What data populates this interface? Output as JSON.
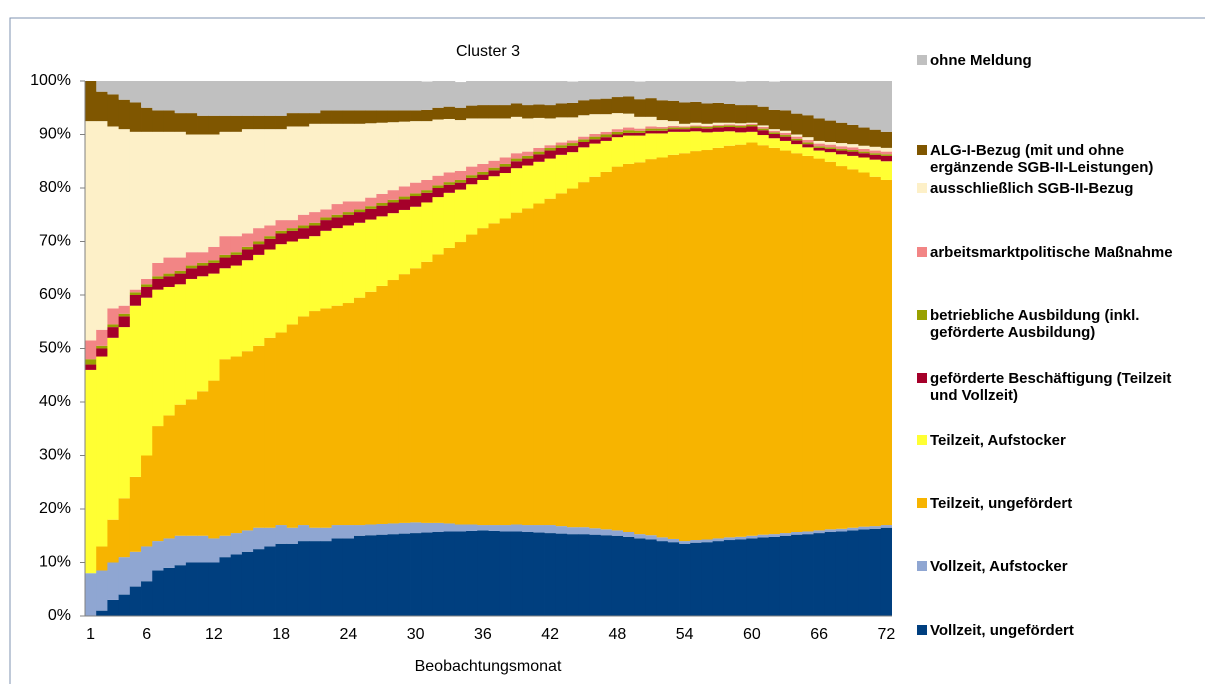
{
  "chart_data": {
    "type": "stacked_bar",
    "title": "Cluster 3",
    "x_label": "Beobachtungsmonat",
    "categories": [
      1,
      null,
      null,
      null,
      null,
      6,
      null,
      null,
      null,
      null,
      null,
      12,
      null,
      null,
      null,
      null,
      null,
      18,
      null,
      null,
      null,
      null,
      null,
      24,
      null,
      null,
      null,
      null,
      null,
      30,
      null,
      null,
      null,
      null,
      null,
      36,
      null,
      null,
      null,
      null,
      null,
      42,
      null,
      null,
      null,
      null,
      null,
      48,
      null,
      null,
      null,
      null,
      null,
      54,
      null,
      null,
      null,
      null,
      null,
      60,
      null,
      null,
      null,
      null,
      null,
      66,
      null,
      null,
      null,
      null,
      null,
      72
    ],
    "ylim": [
      0,
      100
    ],
    "yticks": [
      {
        "value": 0,
        "label": "0%"
      },
      {
        "value": 10,
        "label": "10%"
      },
      {
        "value": 20,
        "label": "20%"
      },
      {
        "value": 30,
        "label": "30%"
      },
      {
        "value": 40,
        "label": "40%"
      },
      {
        "value": 50,
        "label": "50%"
      },
      {
        "value": 60,
        "label": "60%"
      },
      {
        "value": 70,
        "label": "70%"
      },
      {
        "value": 80,
        "label": "80%"
      },
      {
        "value": 90,
        "label": "90%"
      },
      {
        "value": 100,
        "label": "100%"
      }
    ],
    "series": [
      {
        "name": "Vollzeit, ungefördert",
        "color": "#003f7f",
        "values": [
          0,
          1,
          3,
          4,
          5.5,
          6.5,
          8.5,
          9,
          9.5,
          10,
          10,
          10,
          11,
          11.5,
          12,
          12.5,
          13,
          13.5,
          13.5,
          14,
          14,
          14,
          14.5,
          14.5,
          15,
          15.1,
          15.2,
          15.3,
          15.4,
          15.5,
          15.6,
          15.7,
          15.8,
          15.8,
          15.9,
          16,
          15.9,
          15.8,
          15.8,
          15.7,
          15.6,
          15.5,
          15.4,
          15.3,
          15.3,
          15.2,
          15.1,
          15,
          14.8,
          14.5,
          14.3,
          14,
          13.8,
          13.5,
          13.7,
          13.8,
          14,
          14.2,
          14.3,
          14.5,
          14.7,
          14.8,
          15,
          15.2,
          15.3,
          15.5,
          15.7,
          15.8,
          16,
          16.2,
          16.3,
          16.5
        ]
      },
      {
        "name": "Vollzeit, Aufstocker",
        "color": "#8fa6d2",
        "values": [
          8,
          7.5,
          7,
          7,
          6.5,
          6.5,
          5.5,
          5.5,
          5.5,
          5,
          5,
          4.5,
          4,
          4,
          4,
          4,
          3.5,
          3.5,
          3,
          3,
          2.5,
          2.5,
          2.5,
          2.5,
          2,
          2,
          2,
          2,
          2,
          2,
          1.8,
          1.7,
          1.5,
          1.3,
          1.2,
          1,
          1.1,
          1.2,
          1.3,
          1.3,
          1.4,
          1.5,
          1.4,
          1.3,
          1.3,
          1.2,
          1.1,
          1,
          0.9,
          0.8,
          0.8,
          0.7,
          0.6,
          0.5,
          0.5,
          0.5,
          0.5,
          0.5,
          0.5,
          0.5,
          0.5,
          0.5,
          0.5,
          0.5,
          0.5,
          0.5,
          0.5,
          0.5,
          0.5,
          0.5,
          0.5,
          0.5
        ]
      },
      {
        "name": "Teilzeit, ungefördert",
        "color": "#f7b400",
        "values": [
          0,
          4.5,
          8,
          11,
          14,
          17,
          21.5,
          23,
          24.5,
          25.5,
          27,
          29.5,
          33,
          33,
          33.5,
          34,
          35.5,
          36,
          38,
          39,
          40.5,
          41,
          41,
          41.5,
          42.5,
          43.5,
          44.5,
          45.5,
          46.5,
          47.5,
          48.8,
          50.2,
          51.5,
          52.8,
          54.2,
          55.5,
          56.4,
          57.3,
          58.3,
          59.2,
          60.1,
          61,
          62.2,
          63.3,
          64.5,
          65.7,
          66.8,
          68,
          68.8,
          69.5,
          70.3,
          71,
          71.8,
          72.5,
          72.7,
          72.8,
          73,
          73.2,
          73.3,
          73.5,
          72.8,
          72.2,
          71.5,
          70.8,
          70.2,
          69.5,
          68.7,
          67.8,
          67,
          66.2,
          65.3,
          64.5
        ]
      },
      {
        "name": "Teilzeit, Aufstocker",
        "color": "#ffff33",
        "values": [
          38,
          35.5,
          34,
          32,
          32,
          29.5,
          25.5,
          24,
          22.5,
          22.5,
          21.5,
          20,
          17,
          17,
          17,
          17,
          16.5,
          16.5,
          15.5,
          14.5,
          14,
          14.5,
          14.5,
          14.5,
          14,
          13.5,
          13,
          12.5,
          12,
          11.5,
          11.1,
          10.7,
          10.3,
          9.8,
          9.4,
          9,
          8.8,
          8.5,
          8.3,
          8,
          7.8,
          7.5,
          7.2,
          6.8,
          6.5,
          6.2,
          5.8,
          5.5,
          5.3,
          5,
          4.8,
          4.5,
          4.3,
          4,
          3.7,
          3.3,
          3,
          2.7,
          2.3,
          2,
          1.9,
          1.8,
          1.8,
          1.7,
          1.6,
          1.5,
          1.8,
          2.2,
          2.5,
          2.8,
          3.2,
          3.5
        ]
      },
      {
        "name": "geförderte Beschäftigung (Teilzeit und Vollzeit)",
        "color": "#a5002a",
        "values": [
          1,
          1.5,
          2,
          2,
          2,
          2,
          2,
          2,
          2,
          2,
          2,
          2,
          2,
          2,
          2,
          2,
          2,
          2,
          2,
          2,
          2,
          2,
          2,
          2,
          2,
          2,
          2,
          2,
          2,
          2,
          1.8,
          1.7,
          1.5,
          1.3,
          1.2,
          1,
          1.1,
          1.2,
          1.3,
          1.3,
          1.4,
          1.5,
          1.3,
          1.2,
          1,
          0.8,
          0.7,
          0.5,
          0.5,
          0.5,
          0.5,
          0.5,
          0.5,
          0.5,
          0.6,
          0.7,
          0.8,
          0.8,
          0.9,
          1,
          0.9,
          0.8,
          0.8,
          0.7,
          0.6,
          0.5,
          0.6,
          0.7,
          0.8,
          0.8,
          0.9,
          1
        ]
      },
      {
        "name": "betriebliche Ausbildung (inkl. geförderte Ausbildung)",
        "color": "#99a100",
        "values": [
          1,
          0.5,
          0.5,
          0.5,
          0.5,
          0.5,
          0.5,
          0.5,
          0.5,
          0.5,
          0.5,
          0.5,
          0.5,
          0.5,
          0.5,
          0.5,
          0.5,
          0.5,
          0.5,
          0.5,
          0.5,
          0.5,
          0.5,
          0.5,
          0.5,
          0.5,
          0.5,
          0.5,
          0.5,
          0.5,
          0.5,
          0.5,
          0.5,
          0.5,
          0.5,
          0.5,
          0.5,
          0.5,
          0.5,
          0.5,
          0.5,
          0.5,
          0.5,
          0.5,
          0.5,
          0.5,
          0.5,
          0.5,
          0.5,
          0.4,
          0.4,
          0.4,
          0.3,
          0.3,
          0.3,
          0.3,
          0.3,
          0.3,
          0.3,
          0.3,
          0.3,
          0.3,
          0.3,
          0.3,
          0.3,
          0.3,
          0.3,
          0.3,
          0.3,
          0.3,
          0.3,
          0.3
        ]
      },
      {
        "name": "arbeitsmarktpolitische Maßnahme",
        "color": "#f28585",
        "values": [
          3.5,
          3,
          3,
          1.5,
          0.5,
          1,
          2.5,
          3,
          2.5,
          2.5,
          2,
          2.5,
          3.5,
          3,
          2.5,
          2.5,
          2,
          2,
          1.5,
          2,
          2,
          1.5,
          2,
          2,
          1.5,
          1.6,
          1.7,
          1.8,
          1.9,
          2,
          1.9,
          1.8,
          1.8,
          1.7,
          1.6,
          1.5,
          1.3,
          1.2,
          1,
          0.8,
          0.7,
          0.5,
          0.5,
          0.5,
          0.5,
          0.5,
          0.5,
          0.5,
          0.5,
          0.4,
          0.4,
          0.3,
          0.3,
          0.2,
          0.2,
          0.2,
          0.2,
          0.2,
          0.2,
          0.2,
          0.3,
          0.3,
          0.4,
          0.4,
          0.5,
          0.5,
          0.5,
          0.5,
          0.5,
          0.5,
          0.5,
          0.5
        ]
      },
      {
        "name": "ausschließlich SGB-II-Bezug",
        "color": "#fdf0c8",
        "values": [
          41,
          39,
          34,
          33,
          29.5,
          27.5,
          24.5,
          23.5,
          23.5,
          22,
          22,
          21,
          19.5,
          19.5,
          19.5,
          18.5,
          18,
          17,
          17.5,
          16.5,
          16.5,
          16,
          15,
          14.5,
          14.5,
          13.9,
          13.3,
          12.7,
          12.1,
          11.5,
          11,
          10.5,
          10,
          9.5,
          9,
          8.5,
          7.9,
          7.3,
          6.8,
          6.2,
          5.6,
          5,
          4.7,
          4.3,
          4,
          3.7,
          3.3,
          3,
          2.6,
          2.2,
          1.8,
          1.3,
          0.9,
          0.5,
          0.5,
          0.4,
          0.4,
          0.3,
          0.3,
          0.2,
          0.3,
          0.3,
          0.4,
          0.4,
          0.5,
          0.5,
          0.5,
          0.6,
          0.6,
          0.6,
          0.7,
          0.7
        ]
      },
      {
        "name": "ALG-I-Bezug (mit und ohne ergänzende SGB-II-Leistungen)",
        "color": "#7f5600",
        "values": [
          7.5,
          5.5,
          6,
          5.5,
          5.5,
          4.5,
          4,
          4,
          3.5,
          4,
          3.5,
          3.5,
          3,
          3,
          2.5,
          2.5,
          2.5,
          2.5,
          2.5,
          2.5,
          2,
          2.5,
          2.5,
          2.5,
          2.5,
          2.4,
          2.3,
          2.2,
          2.1,
          2,
          2.1,
          2.2,
          2.3,
          2.3,
          2.4,
          2.5,
          2.5,
          2.5,
          2.5,
          2.5,
          2.5,
          2.5,
          2.6,
          2.7,
          2.8,
          2.8,
          2.9,
          3,
          3.2,
          3.3,
          3.5,
          3.7,
          3.8,
          4,
          3.9,
          3.8,
          3.7,
          3.5,
          3.4,
          3.3,
          3.5,
          3.6,
          3.8,
          3.9,
          4.1,
          4.2,
          4,
          3.8,
          3.6,
          3.4,
          3.2,
          3
        ]
      },
      {
        "name": "ohne Meldung",
        "color": "#c0c0c0",
        "values": [
          0,
          2,
          2.5,
          3.5,
          4,
          5,
          5.5,
          5.5,
          6,
          6,
          6.5,
          6.5,
          6.5,
          6.5,
          6.5,
          6.5,
          6.5,
          6.5,
          6,
          6,
          6,
          5.5,
          5.5,
          5.5,
          5.5,
          5.5,
          5.5,
          5.5,
          5.5,
          5.5,
          5.3,
          5.2,
          5,
          4.8,
          4.7,
          4.5,
          4.5,
          4.5,
          4.5,
          4.5,
          4.5,
          4.5,
          4.3,
          4,
          3.8,
          3.5,
          3.3,
          3,
          3.2,
          3.3,
          3.5,
          3.7,
          3.8,
          4,
          4.1,
          4.2,
          4.3,
          4.3,
          4.4,
          4.5,
          4.9,
          5.3,
          5.8,
          6.2,
          6.6,
          7,
          7.4,
          7.8,
          8.3,
          8.8,
          9.1,
          9.5
        ]
      }
    ]
  }
}
